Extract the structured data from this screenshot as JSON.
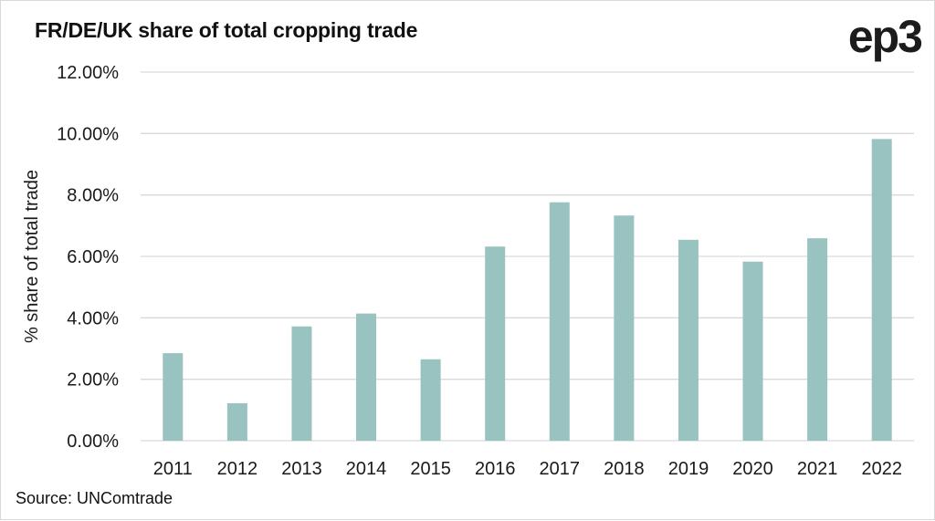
{
  "header": {
    "title": "FR/DE/UK share of total cropping trade",
    "logo": "ep3"
  },
  "footer": {
    "source": "Source: UNComtrade"
  },
  "colors": {
    "bar": "#98c3c1",
    "grid": "#d9d9d9",
    "text": "#1a1a1a"
  },
  "chart_data": {
    "type": "bar",
    "title": "FR/DE/UK share of total cropping trade",
    "xlabel": "",
    "ylabel": "% share of total trade",
    "categories": [
      "2011",
      "2012",
      "2013",
      "2014",
      "2015",
      "2016",
      "2017",
      "2018",
      "2019",
      "2020",
      "2021",
      "2022"
    ],
    "values": [
      2.85,
      1.22,
      3.72,
      4.14,
      2.65,
      6.32,
      7.76,
      7.33,
      6.54,
      5.83,
      6.59,
      9.82
    ],
    "unit": "%",
    "ylim": [
      0,
      12
    ],
    "yticks": [
      0,
      2,
      4,
      6,
      8,
      10,
      12
    ],
    "ytick_labels": [
      "0.00%",
      "2.00%",
      "4.00%",
      "6.00%",
      "8.00%",
      "10.00%",
      "12.00%"
    ],
    "grid": true,
    "legend": "none",
    "source": "Source: UNComtrade"
  }
}
